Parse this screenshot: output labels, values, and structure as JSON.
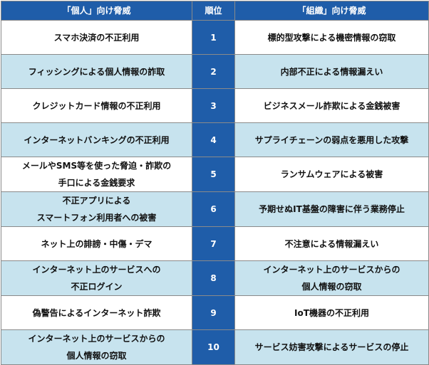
{
  "header": {
    "individual": "「個人」向け脅威",
    "rank": "順位",
    "organization": "「組織」向け脅威"
  },
  "rows": [
    {
      "individual": "スマホ決済の不正利用",
      "rank": "1",
      "organization": "標的型攻撃による機密情報の窃取"
    },
    {
      "individual": "フィッシングによる個人情報の詐取",
      "rank": "2",
      "organization": "内部不正による情報漏えい"
    },
    {
      "individual": "クレジットカード情報の不正利用",
      "rank": "3",
      "organization": "ビジネスメール詐欺による金銭被害"
    },
    {
      "individual": "インターネットバンキングの不正利用",
      "rank": "4",
      "organization": "サプライチェーンの弱点を悪用した攻撃"
    },
    {
      "individual": "メールやSMS等を使った脅迫・詐欺の\n手口による金銭要求",
      "rank": "5",
      "organization": "ランサムウェアによる被害"
    },
    {
      "individual": "不正アプリによる\nスマートフォン利用者への被害",
      "rank": "6",
      "organization": "予期せぬIT基盤の障害に伴う業務停止"
    },
    {
      "individual": "ネット上の誹謗・中傷・デマ",
      "rank": "7",
      "organization": "不注意による情報漏えい"
    },
    {
      "individual": "インターネット上のサービスへの\n不正ログイン",
      "rank": "8",
      "organization": "インターネット上のサービスからの\n個人情報の窃取"
    },
    {
      "individual": "偽警告によるインターネット詐欺",
      "rank": "9",
      "organization": "IoT機器の不正利用"
    },
    {
      "individual": "インターネット上のサービスからの\n個人情報の窃取",
      "rank": "10",
      "organization": "サービス妨害攻撃によるサービスの停止"
    }
  ],
  "colors": {
    "header_bg": "#1f5da9",
    "rank_bg": "#1f5da9",
    "alt_row_bg": "#c7e3ee",
    "plain_row_bg": "#ffffff",
    "border": "#8a8a8a"
  }
}
